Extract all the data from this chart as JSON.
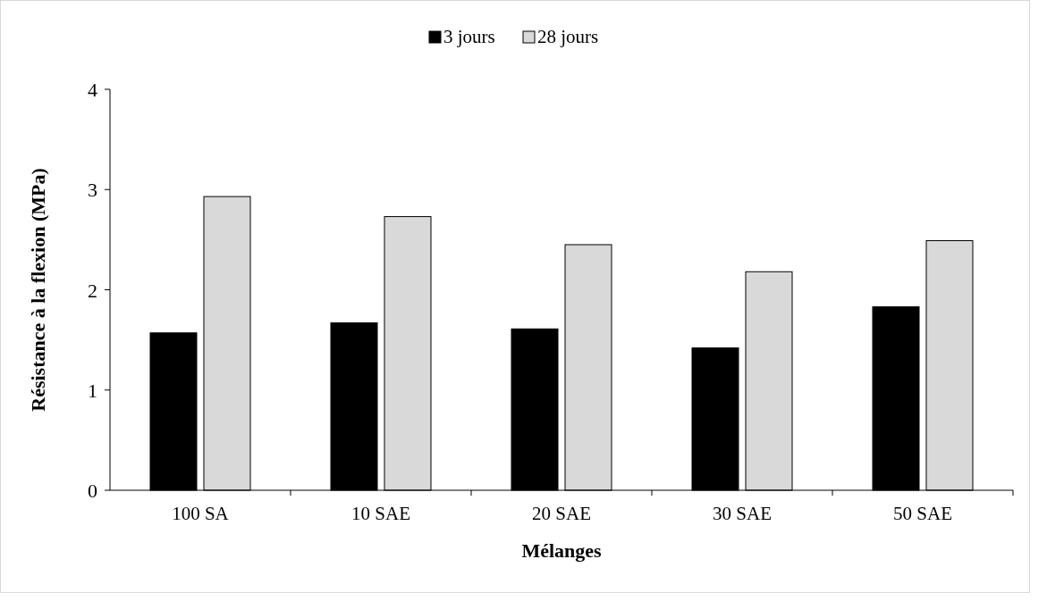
{
  "chart_data": {
    "type": "bar",
    "xlabel": "Mélanges",
    "ylabel": "Résistance à la flexion (MPa)",
    "categories": [
      "100 SA",
      "10 SAE",
      "20 SAE",
      "30 SAE",
      "50 SAE"
    ],
    "series": [
      {
        "name": "3 jours",
        "color": "#000000",
        "values": [
          1.57,
          1.67,
          1.61,
          1.42,
          1.83
        ]
      },
      {
        "name": "28 jours",
        "color": "#d9d9d9",
        "values": [
          2.93,
          2.73,
          2.45,
          2.18,
          2.49
        ]
      }
    ],
    "ylim": [
      0,
      4
    ],
    "yticks": [
      0,
      1,
      2,
      3,
      4
    ],
    "grid": false,
    "legend": "top"
  }
}
